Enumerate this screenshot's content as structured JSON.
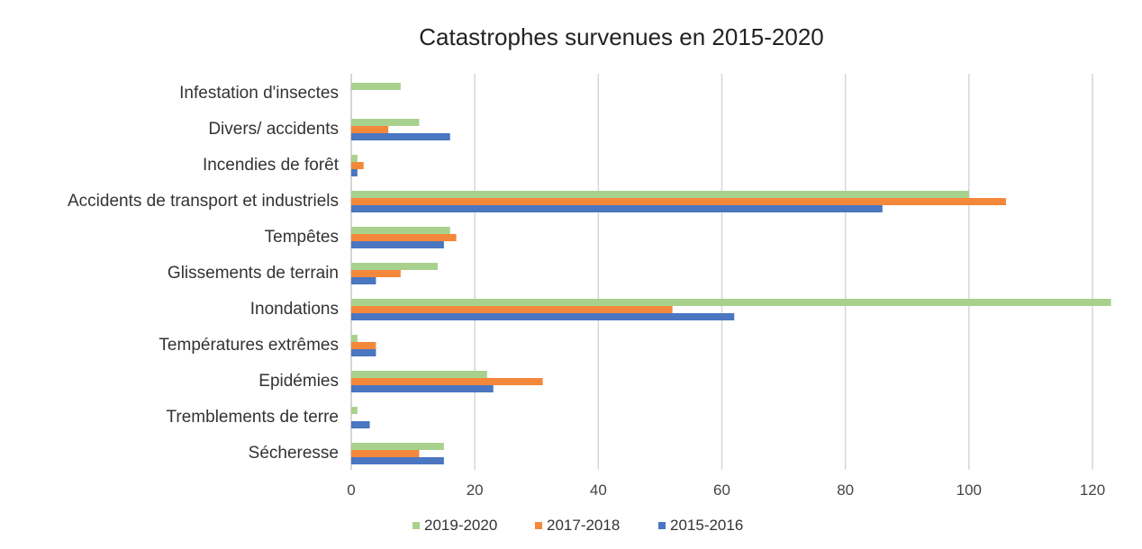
{
  "chart_data": {
    "type": "bar",
    "orientation": "horizontal",
    "title": "Catastrophes survenues en 2015-2020",
    "xlabel": "",
    "ylabel": "",
    "xlim": [
      0,
      125
    ],
    "xticks": [
      0,
      20,
      40,
      60,
      80,
      100,
      120
    ],
    "grid": true,
    "legend_position": "bottom",
    "categories": [
      "Infestation d'insectes",
      "Divers/ accidents",
      "Incendies de forêt",
      "Accidents de transport et industriels",
      "Tempêtes",
      "Glissements de terrain",
      "Inondations",
      "Températures extrêmes",
      "Epidémies",
      "Tremblements de terre",
      "Sécheresse"
    ],
    "series": [
      {
        "name": "2019-2020",
        "color": "#a9d18e",
        "values": [
          8,
          11,
          1,
          100,
          16,
          14,
          123,
          1,
          22,
          1,
          15
        ]
      },
      {
        "name": "2017-2018",
        "color": "#f4883a",
        "values": [
          0,
          6,
          2,
          106,
          17,
          8,
          52,
          4,
          31,
          0,
          11
        ]
      },
      {
        "name": "2015-2016",
        "color": "#4a76c2",
        "values": [
          0,
          16,
          1,
          86,
          15,
          4,
          62,
          4,
          23,
          3,
          15
        ]
      }
    ]
  }
}
